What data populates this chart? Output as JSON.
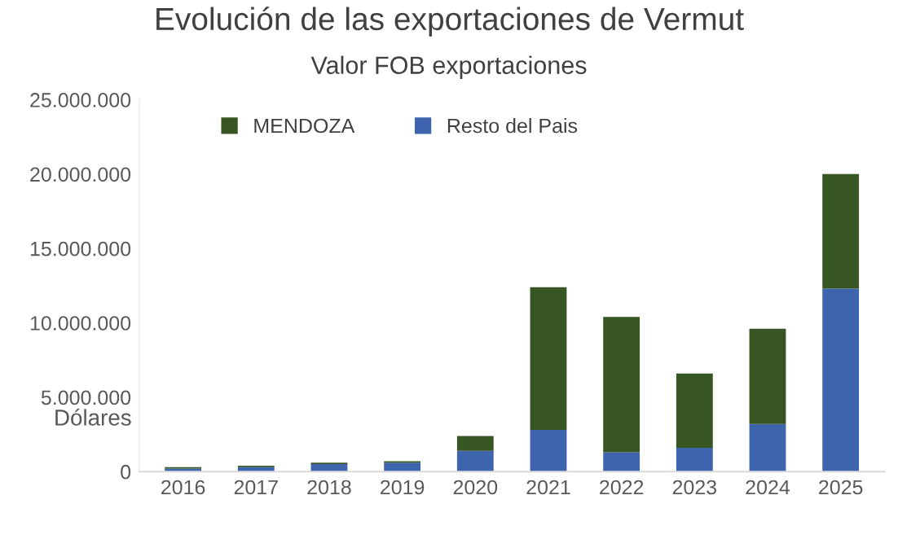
{
  "chart_data": {
    "type": "bar",
    "title": "Evolución de las exportaciones de Vermut",
    "subtitle": "Valor FOB exportaciones",
    "ylabel": "Dólares",
    "categories": [
      "2016",
      "2017",
      "2018",
      "2019",
      "2020",
      "2021",
      "2022",
      "2023",
      "2024",
      "2025"
    ],
    "stacked": true,
    "legend": "top",
    "grid": false,
    "series": [
      {
        "name": "Resto del Pais",
        "color": "#3f64ae",
        "values": [
          200000,
          300000,
          500000,
          600000,
          1400000,
          2800000,
          1300000,
          1600000,
          3200000,
          12300000
        ]
      },
      {
        "name": "MENDOZA",
        "color": "#375623",
        "values": [
          100000,
          100000,
          100000,
          100000,
          1000000,
          9600000,
          9100000,
          5000000,
          6400000,
          7700000
        ]
      }
    ],
    "ylim": [
      0,
      25000000
    ],
    "yticks": [
      {
        "value": 0,
        "label": "0"
      },
      {
        "value": 5000000,
        "label": "5.000.000"
      },
      {
        "value": 10000000,
        "label": "10.000.000"
      },
      {
        "value": 15000000,
        "label": "15.000.000"
      },
      {
        "value": 20000000,
        "label": "20.000.000"
      },
      {
        "value": 25000000,
        "label": "25.000.000"
      }
    ]
  }
}
